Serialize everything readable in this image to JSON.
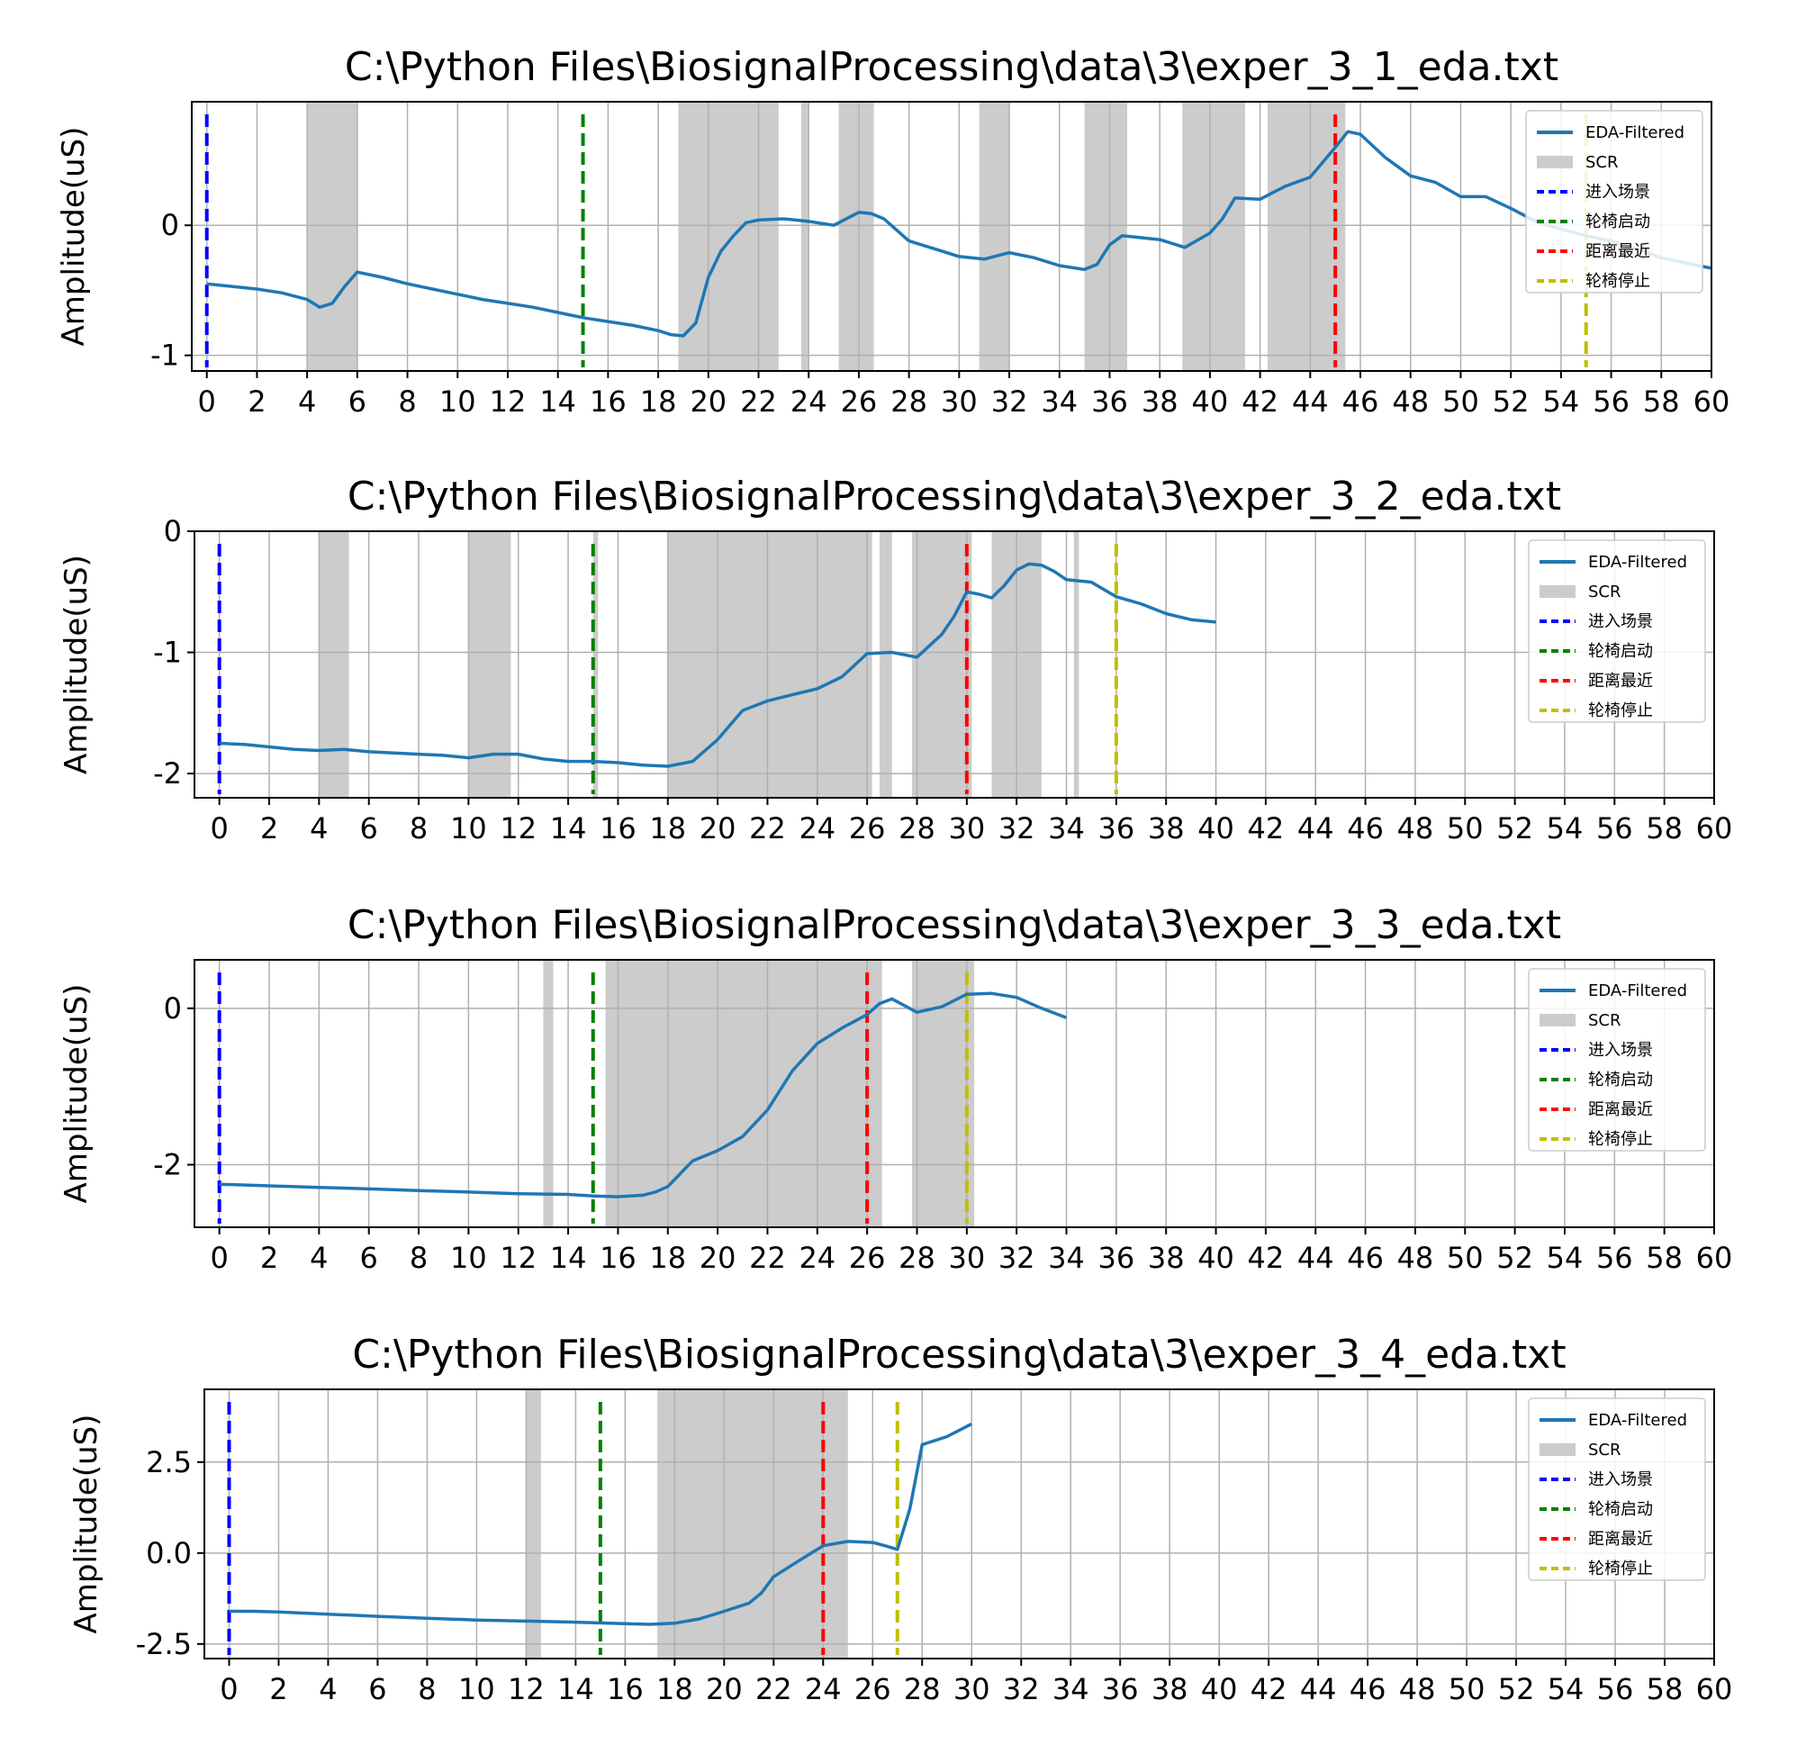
{
  "chart_data": [
    {
      "type": "line",
      "title": "C:\\Python Files\\BiosignalProcessing\\data\\3\\exper_3_1_eda.txt",
      "xlabel": "",
      "ylabel": "Amplitude(uS)",
      "xlim": [
        -0.6,
        60
      ],
      "ylim": [
        -1.12,
        0.95
      ],
      "xticks": [
        0,
        2,
        4,
        6,
        8,
        10,
        12,
        14,
        16,
        18,
        20,
        22,
        24,
        26,
        28,
        30,
        32,
        34,
        36,
        38,
        40,
        42,
        44,
        46,
        48,
        50,
        52,
        54,
        56,
        58,
        60
      ],
      "yticks": [
        0,
        -1
      ],
      "ytick_labels": [
        "0",
        "-1"
      ],
      "grid": true,
      "legend_position": "upper right",
      "series": [
        {
          "name": "EDA-Filtered",
          "color": "#1f77b4",
          "x": [
            0,
            1,
            2,
            3,
            4,
            4.5,
            5,
            5.5,
            6,
            7,
            8,
            9,
            10,
            11,
            12,
            13,
            14,
            15,
            16,
            17,
            18,
            18.5,
            19,
            19.5,
            20,
            20.5,
            21,
            21.5,
            22,
            23,
            24,
            25,
            26,
            26.5,
            27,
            28,
            29,
            30,
            31,
            32,
            33,
            34,
            35,
            35.5,
            36,
            36.5,
            37,
            38,
            39,
            40,
            40.5,
            41,
            42,
            42.5,
            43,
            44,
            45,
            45.5,
            46,
            47,
            48,
            49,
            50,
            51,
            52,
            53,
            54,
            55,
            56,
            57,
            58,
            59,
            60
          ],
          "y": [
            -0.45,
            -0.47,
            -0.49,
            -0.52,
            -0.57,
            -0.63,
            -0.6,
            -0.47,
            -0.36,
            -0.4,
            -0.45,
            -0.49,
            -0.53,
            -0.57,
            -0.6,
            -0.63,
            -0.67,
            -0.71,
            -0.74,
            -0.77,
            -0.81,
            -0.84,
            -0.85,
            -0.75,
            -0.4,
            -0.2,
            -0.08,
            0.02,
            0.04,
            0.05,
            0.03,
            0.0,
            0.1,
            0.09,
            0.05,
            -0.12,
            -0.18,
            -0.24,
            -0.26,
            -0.21,
            -0.25,
            -0.31,
            -0.34,
            -0.3,
            -0.15,
            -0.08,
            -0.09,
            -0.11,
            -0.17,
            -0.06,
            0.05,
            0.21,
            0.2,
            0.25,
            0.3,
            0.37,
            0.6,
            0.72,
            0.7,
            0.52,
            0.38,
            0.33,
            0.22,
            0.22,
            0.13,
            0.03,
            -0.03,
            -0.08,
            -0.12,
            -0.18,
            -0.25,
            -0.29,
            -0.33
          ]
        }
      ],
      "scr_regions": [
        [
          4,
          6
        ],
        [
          18.8,
          22.8
        ],
        [
          23.7,
          24
        ],
        [
          25.2,
          26.6
        ],
        [
          30.8,
          32
        ],
        [
          35,
          36.7
        ],
        [
          38.9,
          41.4
        ],
        [
          42.3,
          45.4
        ]
      ],
      "events": [
        {
          "name": "进入场景",
          "x": 0,
          "color": "#0000ff"
        },
        {
          "name": "轮椅启动",
          "x": 15,
          "color": "#008000"
        },
        {
          "name": "距离最近",
          "x": 45,
          "color": "#ff0000"
        },
        {
          "name": "轮椅停止",
          "x": 55,
          "color": "#bfbf00"
        }
      ],
      "legend_scr": "SCR"
    },
    {
      "type": "line",
      "title": "C:\\Python Files\\BiosignalProcessing\\data\\3\\exper_3_2_eda.txt",
      "xlabel": "",
      "ylabel": "Amplitude(uS)",
      "xlim": [
        -1,
        60
      ],
      "ylim": [
        -2.2,
        0
      ],
      "xticks": [
        0,
        2,
        4,
        6,
        8,
        10,
        12,
        14,
        16,
        18,
        20,
        22,
        24,
        26,
        28,
        30,
        32,
        34,
        36,
        38,
        40,
        42,
        44,
        46,
        48,
        50,
        52,
        54,
        56,
        58,
        60
      ],
      "yticks": [
        0,
        -1,
        -2
      ],
      "ytick_labels": [
        "0",
        "-1",
        "-2"
      ],
      "grid": true,
      "legend_position": "upper right",
      "series": [
        {
          "name": "EDA-Filtered",
          "color": "#1f77b4",
          "x": [
            0,
            1,
            2,
            3,
            4,
            5,
            6,
            7,
            8,
            9,
            10,
            11,
            12,
            13,
            14,
            15,
            16,
            17,
            18,
            19,
            20,
            21,
            22,
            23,
            24,
            25,
            26,
            27,
            28,
            29,
            29.5,
            30,
            30.5,
            31,
            31.5,
            32,
            32.5,
            33,
            33.5,
            34,
            35,
            35.5,
            36,
            37,
            38,
            39,
            40
          ],
          "y": [
            -1.75,
            -1.76,
            -1.78,
            -1.8,
            -1.81,
            -1.8,
            -1.82,
            -1.83,
            -1.84,
            -1.85,
            -1.87,
            -1.84,
            -1.84,
            -1.88,
            -1.9,
            -1.9,
            -1.91,
            -1.93,
            -1.94,
            -1.9,
            -1.72,
            -1.48,
            -1.4,
            -1.35,
            -1.3,
            -1.2,
            -1.01,
            -1.0,
            -1.04,
            -0.85,
            -0.7,
            -0.5,
            -0.52,
            -0.55,
            -0.45,
            -0.32,
            -0.27,
            -0.28,
            -0.33,
            -0.4,
            -0.42,
            -0.48,
            -0.54,
            -0.6,
            -0.68,
            -0.73,
            -0.75
          ]
        }
      ],
      "scr_regions": [
        [
          4,
          5.2
        ],
        [
          10,
          11.7
        ],
        [
          15,
          15.2
        ],
        [
          18,
          26.2
        ],
        [
          26.5,
          27
        ],
        [
          27.8,
          30.2
        ],
        [
          31,
          33
        ],
        [
          34.3,
          34.5
        ]
      ],
      "events": [
        {
          "name": "进入场景",
          "x": 0,
          "color": "#0000ff"
        },
        {
          "name": "轮椅启动",
          "x": 15,
          "color": "#008000"
        },
        {
          "name": "距离最近",
          "x": 30,
          "color": "#ff0000"
        },
        {
          "name": "轮椅停止",
          "x": 36,
          "color": "#bfbf00"
        }
      ],
      "legend_scr": "SCR"
    },
    {
      "type": "line",
      "title": "C:\\Python Files\\BiosignalProcessing\\data\\3\\exper_3_3_eda.txt",
      "xlabel": "",
      "ylabel": "Amplitude(uS)",
      "xlim": [
        -1,
        60
      ],
      "ylim": [
        -2.8,
        0.62
      ],
      "xticks": [
        0,
        2,
        4,
        6,
        8,
        10,
        12,
        14,
        16,
        18,
        20,
        22,
        24,
        26,
        28,
        30,
        32,
        34,
        36,
        38,
        40,
        42,
        44,
        46,
        48,
        50,
        52,
        54,
        56,
        58,
        60
      ],
      "yticks": [
        0,
        -2
      ],
      "ytick_labels": [
        "0",
        "-2"
      ],
      "grid": true,
      "legend_position": "upper right",
      "series": [
        {
          "name": "EDA-Filtered",
          "color": "#1f77b4",
          "x": [
            0,
            2,
            4,
            6,
            8,
            10,
            12,
            14,
            15,
            16,
            17,
            17.5,
            18,
            19,
            20,
            21,
            22,
            23,
            24,
            25,
            26,
            26.5,
            27,
            28,
            29,
            30,
            31,
            32,
            33,
            34
          ],
          "y": [
            -2.25,
            -2.27,
            -2.29,
            -2.31,
            -2.33,
            -2.35,
            -2.37,
            -2.38,
            -2.4,
            -2.41,
            -2.39,
            -2.35,
            -2.28,
            -1.95,
            -1.82,
            -1.64,
            -1.3,
            -0.8,
            -0.45,
            -0.25,
            -0.08,
            0.06,
            0.12,
            -0.05,
            0.02,
            0.18,
            0.19,
            0.14,
            0.0,
            -0.12
          ]
        }
      ],
      "scr_regions": [
        [
          13,
          13.4
        ],
        [
          15.5,
          26.6
        ],
        [
          27.8,
          30.3
        ]
      ],
      "events": [
        {
          "name": "进入场景",
          "x": 0,
          "color": "#0000ff"
        },
        {
          "name": "轮椅启动",
          "x": 15,
          "color": "#008000"
        },
        {
          "name": "距离最近",
          "x": 26,
          "color": "#ff0000"
        },
        {
          "name": "轮椅停止",
          "x": 30,
          "color": "#bfbf00"
        }
      ],
      "legend_scr": "SCR"
    },
    {
      "type": "line",
      "title": "C:\\Python Files\\BiosignalProcessing\\data\\3\\exper_3_4_eda.txt",
      "xlabel": "",
      "ylabel": "Amplitude(uS)",
      "xlim": [
        -1,
        60
      ],
      "ylim": [
        -2.9,
        4.5
      ],
      "xticks": [
        0,
        2,
        4,
        6,
        8,
        10,
        12,
        14,
        16,
        18,
        20,
        22,
        24,
        26,
        28,
        30,
        32,
        34,
        36,
        38,
        40,
        42,
        44,
        46,
        48,
        50,
        52,
        54,
        56,
        58,
        60
      ],
      "yticks": [
        2.5,
        0.0,
        -2.5
      ],
      "ytick_labels": [
        "2.5",
        "0.0",
        "-2.5"
      ],
      "grid": true,
      "legend_position": "upper right",
      "series": [
        {
          "name": "EDA-Filtered",
          "color": "#1f77b4",
          "x": [
            0,
            1,
            2,
            4,
            6,
            8,
            10,
            12,
            14,
            16,
            17,
            18,
            19,
            20,
            21,
            21.5,
            22,
            23,
            24,
            25,
            26,
            26.5,
            27,
            27.5,
            28,
            29,
            30
          ],
          "y": [
            -1.6,
            -1.6,
            -1.62,
            -1.68,
            -1.74,
            -1.79,
            -1.84,
            -1.87,
            -1.9,
            -1.94,
            -1.96,
            -1.93,
            -1.81,
            -1.6,
            -1.38,
            -1.1,
            -0.65,
            -0.22,
            0.2,
            0.32,
            0.29,
            0.2,
            0.1,
            1.2,
            2.98,
            3.2,
            3.55
          ]
        }
      ],
      "scr_regions": [
        [
          12,
          12.6
        ],
        [
          17.3,
          25
        ]
      ],
      "events": [
        {
          "name": "进入场景",
          "x": 0,
          "color": "#0000ff"
        },
        {
          "name": "轮椅启动",
          "x": 15,
          "color": "#008000"
        },
        {
          "name": "距离最近",
          "x": 24,
          "color": "#ff0000"
        },
        {
          "name": "轮椅停止",
          "x": 27,
          "color": "#bfbf00"
        }
      ],
      "legend_scr": "SCR"
    }
  ]
}
